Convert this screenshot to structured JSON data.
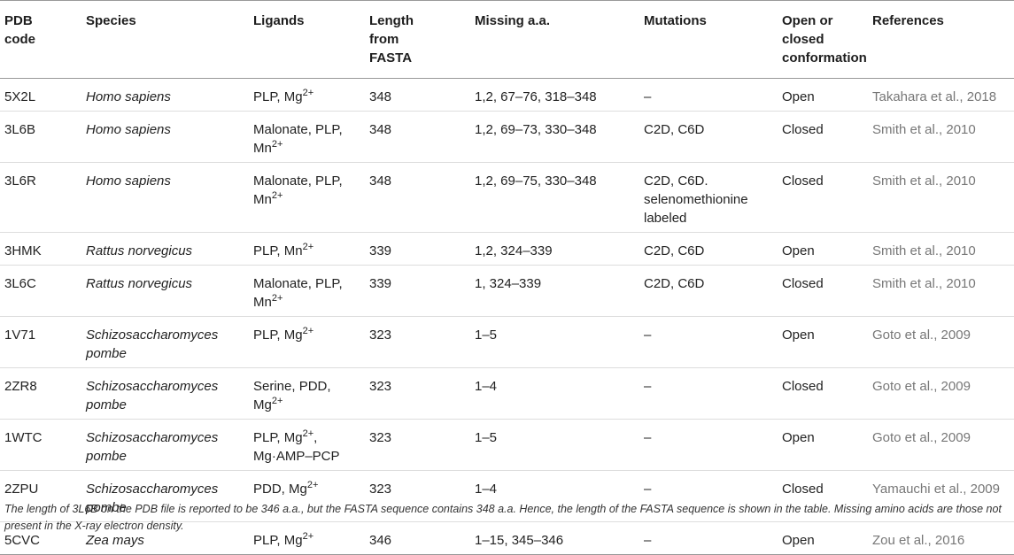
{
  "table": {
    "headers": {
      "pdb": "PDB code",
      "species": "Species",
      "ligands": "Ligands",
      "length": "Length from FASTA",
      "missing": "Missing a.a.",
      "mutations": "Mutations",
      "conformation": "Open or closed conformation",
      "references": "References"
    },
    "rows": [
      {
        "pdb": "5X2L",
        "species": "Homo sapiens",
        "lig": [
          "PLP, Mg",
          "2+",
          ""
        ],
        "length": "348",
        "missing": "1,2, 67–76, 318–348",
        "mutations": "–",
        "conformation": "Open",
        "reference": "Takahara et al., 2018"
      },
      {
        "pdb": "3L6B",
        "species": "Homo sapiens",
        "lig": [
          "Malonate, PLP, Mn",
          "2+",
          ""
        ],
        "length": "348",
        "missing": "1,2, 69–73, 330–348",
        "mutations": "C2D, C6D",
        "conformation": "Closed",
        "reference": "Smith et al., 2010"
      },
      {
        "pdb": "3L6R",
        "species": "Homo sapiens",
        "lig": [
          "Malonate, PLP, Mn",
          "2+",
          ""
        ],
        "length": "348",
        "missing": "1,2, 69–75, 330–348",
        "mutations": "C2D, C6D. selenomethionine labeled",
        "conformation": "Closed",
        "reference": "Smith et al., 2010"
      },
      {
        "pdb": "3HMK",
        "species": "Rattus norvegicus",
        "lig": [
          "PLP, Mn",
          "2+",
          ""
        ],
        "length": "339",
        "missing": "1,2, 324–339",
        "mutations": "C2D, C6D",
        "conformation": "Open",
        "reference": "Smith et al., 2010"
      },
      {
        "pdb": "3L6C",
        "species": "Rattus norvegicus",
        "lig": [
          "Malonate, PLP, Mn",
          "2+",
          ""
        ],
        "length": "339",
        "missing": "1, 324–339",
        "mutations": "C2D, C6D",
        "conformation": "Closed",
        "reference": "Smith et al., 2010"
      },
      {
        "pdb": "1V71",
        "species": "Schizosaccharomyces pombe",
        "lig": [
          "PLP, Mg",
          "2+",
          ""
        ],
        "length": "323",
        "missing": "1–5",
        "mutations": "–",
        "conformation": "Open",
        "reference": "Goto et al., 2009"
      },
      {
        "pdb": "2ZR8",
        "species": "Schizosaccharomyces pombe",
        "lig": [
          "Serine, PDD, Mg",
          "2+",
          ""
        ],
        "length": "323",
        "missing": "1–4",
        "mutations": "–",
        "conformation": "Closed",
        "reference": "Goto et al., 2009"
      },
      {
        "pdb": "1WTC",
        "species": "Schizosaccharomyces pombe",
        "lig": [
          "PLP, Mg",
          "2+",
          ", Mg·AMP–PCP"
        ],
        "length": "323",
        "missing": "1–5",
        "mutations": "–",
        "conformation": "Open",
        "reference": "Goto et al., 2009"
      },
      {
        "pdb": "2ZPU",
        "species": "Schizosaccharomyces pombe",
        "lig": [
          "PDD, Mg",
          "2+",
          ""
        ],
        "length": "323",
        "missing": "1–4",
        "mutations": "–",
        "conformation": "Closed",
        "reference": "Yamauchi et al., 2009"
      },
      {
        "pdb": "5CVC",
        "species": "Zea mays",
        "lig": [
          "PLP, Mg",
          "2+",
          ""
        ],
        "length": "346",
        "missing": "1–15, 345–346",
        "mutations": "–",
        "conformation": "Open",
        "reference": "Zou et al., 2016"
      }
    ]
  },
  "footnote": "The length of 3L6B on the PDB file is reported to be 346 a.a., but the FASTA sequence contains 348 a.a. Hence, the length of the FASTA sequence is shown in the table. Missing amino acids are those not present in the X-ray electron density.",
  "colors": {
    "text": "#222222",
    "reference": "#777777",
    "rule": "#999999",
    "row_rule": "#dddddd"
  }
}
